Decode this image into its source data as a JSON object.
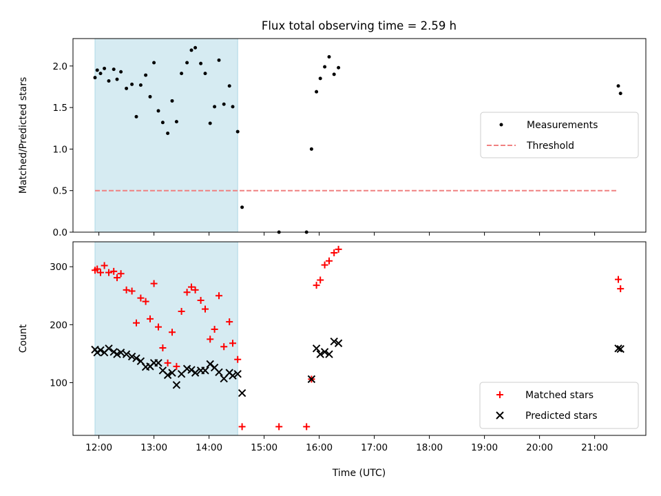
{
  "figure": {
    "title": "Flux total observing time = 2.59 h",
    "xlabel": "Time (UTC)",
    "highlight_color": "#add8e6"
  },
  "chart_data": [
    {
      "type": "scatter",
      "ylabel": "Matched/Predicted stars",
      "ylim": [
        0,
        2.33
      ],
      "yticks": [
        "0.0",
        "0.5",
        "1.0",
        "1.5",
        "2.0"
      ],
      "ytick_values": [
        0,
        0.5,
        1.0,
        1.5,
        2.0
      ],
      "xlim_hours": [
        11.53,
        21.93
      ],
      "highlight_span_hours": [
        11.93,
        14.52
      ],
      "legend": {
        "placement": "center-right",
        "entries": [
          "Measurements",
          "Threshold"
        ]
      },
      "threshold": {
        "name": "Threshold",
        "value": 0.5,
        "x_range_hours": [
          11.93,
          21.43
        ],
        "color": "#f08080"
      },
      "series": [
        {
          "name": "Measurements",
          "marker": "dot",
          "color": "#000000",
          "points": [
            [
              11.93,
              1.86
            ],
            [
              11.97,
              1.95
            ],
            [
              12.03,
              1.91
            ],
            [
              12.1,
              1.97
            ],
            [
              12.18,
              1.82
            ],
            [
              12.27,
              1.96
            ],
            [
              12.33,
              1.84
            ],
            [
              12.4,
              1.93
            ],
            [
              12.5,
              1.73
            ],
            [
              12.6,
              1.78
            ],
            [
              12.68,
              1.39
            ],
            [
              12.76,
              1.77
            ],
            [
              12.85,
              1.89
            ],
            [
              12.93,
              1.63
            ],
            [
              13.0,
              2.04
            ],
            [
              13.08,
              1.46
            ],
            [
              13.16,
              1.32
            ],
            [
              13.25,
              1.19
            ],
            [
              13.33,
              1.58
            ],
            [
              13.41,
              1.33
            ],
            [
              13.5,
              1.91
            ],
            [
              13.6,
              2.04
            ],
            [
              13.68,
              2.19
            ],
            [
              13.75,
              2.22
            ],
            [
              13.85,
              2.03
            ],
            [
              13.93,
              1.91
            ],
            [
              14.02,
              1.31
            ],
            [
              14.1,
              1.51
            ],
            [
              14.18,
              2.07
            ],
            [
              14.27,
              1.54
            ],
            [
              14.37,
              1.76
            ],
            [
              14.43,
              1.51
            ],
            [
              14.52,
              1.21
            ],
            [
              14.6,
              0.3
            ],
            [
              15.27,
              0.0
            ],
            [
              15.77,
              0.0
            ],
            [
              15.86,
              1.0
            ],
            [
              15.95,
              1.69
            ],
            [
              16.02,
              1.85
            ],
            [
              16.1,
              1.99
            ],
            [
              16.18,
              2.11
            ],
            [
              16.27,
              1.9
            ],
            [
              16.35,
              1.98
            ],
            [
              21.43,
              1.76
            ],
            [
              21.47,
              1.67
            ]
          ]
        }
      ]
    },
    {
      "type": "scatter",
      "ylabel": "Count",
      "ylim": [
        9,
        343
      ],
      "yticks": [
        "100",
        "200",
        "300"
      ],
      "ytick_values": [
        100,
        200,
        300
      ],
      "xlim_hours": [
        11.53,
        21.93
      ],
      "xticks": [
        "12:00",
        "13:00",
        "14:00",
        "15:00",
        "16:00",
        "17:00",
        "18:00",
        "19:00",
        "20:00",
        "21:00"
      ],
      "xtick_hours": [
        12,
        13,
        14,
        15,
        16,
        17,
        18,
        19,
        20,
        21
      ],
      "highlight_span_hours": [
        11.93,
        14.52
      ],
      "legend": {
        "placement": "bottom-right",
        "entries": [
          "Matched stars",
          "Predicted stars"
        ]
      },
      "series": [
        {
          "name": "Matched stars",
          "marker": "plus",
          "color": "#ff0000",
          "points": [
            [
              11.93,
              294
            ],
            [
              11.97,
              296
            ],
            [
              12.03,
              290
            ],
            [
              12.1,
              302
            ],
            [
              12.18,
              290
            ],
            [
              12.27,
              292
            ],
            [
              12.33,
              281
            ],
            [
              12.4,
              288
            ],
            [
              12.5,
              260
            ],
            [
              12.6,
              258
            ],
            [
              12.68,
              203
            ],
            [
              12.76,
              246
            ],
            [
              12.85,
              240
            ],
            [
              12.93,
              210
            ],
            [
              13.0,
              271
            ],
            [
              13.08,
              196
            ],
            [
              13.16,
              160
            ],
            [
              13.25,
              134
            ],
            [
              13.33,
              187
            ],
            [
              13.41,
              128
            ],
            [
              13.5,
              223
            ],
            [
              13.6,
              256
            ],
            [
              13.68,
              265
            ],
            [
              13.75,
              260
            ],
            [
              13.85,
              242
            ],
            [
              13.93,
              227
            ],
            [
              14.02,
              175
            ],
            [
              14.1,
              192
            ],
            [
              14.18,
              250
            ],
            [
              14.27,
              162
            ],
            [
              14.37,
              205
            ],
            [
              14.43,
              168
            ],
            [
              14.52,
              140
            ],
            [
              14.6,
              24
            ],
            [
              15.27,
              24
            ],
            [
              15.77,
              24
            ],
            [
              15.86,
              106
            ],
            [
              15.95,
              268
            ],
            [
              16.02,
              277
            ],
            [
              16.1,
              303
            ],
            [
              16.18,
              310
            ],
            [
              16.27,
              324
            ],
            [
              16.35,
              330
            ],
            [
              21.43,
              278
            ],
            [
              21.47,
              262
            ]
          ]
        },
        {
          "name": "Predicted stars",
          "marker": "x",
          "color": "#000000",
          "points": [
            [
              11.93,
              157
            ],
            [
              11.97,
              152
            ],
            [
              12.03,
              156
            ],
            [
              12.1,
              152
            ],
            [
              12.18,
              159
            ],
            [
              12.27,
              153
            ],
            [
              12.33,
              149
            ],
            [
              12.4,
              152
            ],
            [
              12.5,
              149
            ],
            [
              12.6,
              145
            ],
            [
              12.68,
              142
            ],
            [
              12.76,
              137
            ],
            [
              12.85,
              127
            ],
            [
              12.93,
              128
            ],
            [
              13.0,
              134
            ],
            [
              13.08,
              134
            ],
            [
              13.16,
              121
            ],
            [
              13.25,
              113
            ],
            [
              13.33,
              117
            ],
            [
              13.41,
              96
            ],
            [
              13.5,
              115
            ],
            [
              13.6,
              124
            ],
            [
              13.68,
              122
            ],
            [
              13.75,
              117
            ],
            [
              13.85,
              121
            ],
            [
              13.93,
              121
            ],
            [
              14.02,
              132
            ],
            [
              14.1,
              126
            ],
            [
              14.18,
              118
            ],
            [
              14.27,
              107
            ],
            [
              14.37,
              117
            ],
            [
              14.43,
              112
            ],
            [
              14.52,
              115
            ],
            [
              14.6,
              82
            ],
            [
              15.86,
              106
            ],
            [
              15.95,
              159
            ],
            [
              16.02,
              149
            ],
            [
              16.1,
              153
            ],
            [
              16.18,
              149
            ],
            [
              16.27,
              171
            ],
            [
              16.35,
              168
            ],
            [
              21.43,
              159
            ],
            [
              21.47,
              158
            ]
          ]
        }
      ]
    }
  ]
}
